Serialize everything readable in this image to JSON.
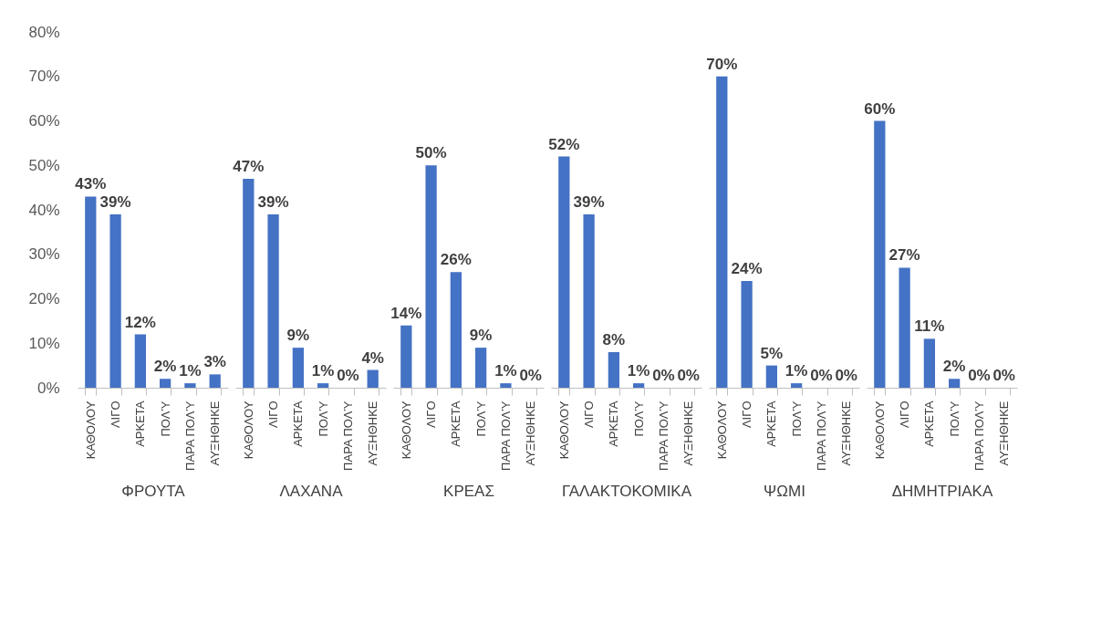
{
  "chart_data": [
    {
      "type": "bar",
      "xlabel": "ΦΡΟΥΤΑ",
      "categories": [
        "ΚΑΘΟΛΟΥ",
        "ΛΙΓΟ",
        "ΑΡΚΕΤΑ",
        "ΠΟΛΎ",
        "ΠΑΡΑ ΠΟΛΎ",
        "ΑΥΞΗΘΗΚΕ"
      ],
      "values": [
        43,
        39,
        12,
        2,
        1,
        3
      ],
      "value_labels": [
        "43%",
        "39%",
        "12%",
        "2%",
        "1%",
        "3%"
      ],
      "color": "#4472c4",
      "ylim": [
        0,
        80
      ],
      "yticks": [
        {
          "value": 0,
          "label": "0%"
        },
        {
          "value": 10,
          "label": "10%"
        },
        {
          "value": 20,
          "label": "20%"
        },
        {
          "value": 30,
          "label": "30%"
        },
        {
          "value": 40,
          "label": "40%"
        },
        {
          "value": 50,
          "label": "50%"
        },
        {
          "value": 60,
          "label": "60%"
        },
        {
          "value": 70,
          "label": "70%"
        },
        {
          "value": 80,
          "label": "80%"
        }
      ]
    },
    {
      "type": "bar",
      "xlabel": "ΛΑΧΑΝΑ",
      "categories": [
        "ΚΑΘΟΛΟΥ",
        "ΛΙΓΟ",
        "ΑΡΚΕΤΑ",
        "ΠΟΛΎ",
        "ΠΑΡΑ ΠΟΛΎ",
        "ΑΥΞΗΘΗΚΕ"
      ],
      "values": [
        47,
        39,
        9,
        1,
        0,
        4
      ],
      "value_labels": [
        "47%",
        "39%",
        "9%",
        "1%",
        "0%",
        "4%"
      ],
      "color": "#4472c4",
      "ylim": [
        0,
        80
      ],
      "tick_labels": "x"
    },
    {
      "type": "bar",
      "xlabel": "ΚΡΕΑΣ",
      "categories": [
        "ΚΑΘΟΛΟΥ",
        "ΛΙΓΟ",
        "ΑΡΚΕΤΑ",
        "ΠΟΛΎ",
        "ΠΑΡΑ ΠΟΛΎ",
        "ΑΥΞΗΘΗΚΕ"
      ],
      "values": [
        14,
        50,
        26,
        9,
        1,
        0
      ],
      "value_labels": [
        "14%",
        "50%",
        "26%",
        "9%",
        "1%",
        "0%"
      ],
      "color": "#4472c4",
      "ylim": [
        0,
        80
      ],
      "tick_labels": "x"
    },
    {
      "type": "bar",
      "xlabel": "ΓΑΛΑΚΤΟΚΟΜΙΚΑ",
      "categories": [
        "ΚΑΘΟΛΟΥ",
        "ΛΙΓΟ",
        "ΑΡΚΕΤΑ",
        "ΠΟΛΎ",
        "ΠΑΡΑ ΠΟΛΎ",
        "ΑΥΞΗΘΗΚΕ"
      ],
      "values": [
        52,
        39,
        8,
        1,
        0,
        0
      ],
      "value_labels": [
        "52%",
        "39%",
        "8%",
        "1%",
        "0%",
        "0%"
      ],
      "color": "#4472c4",
      "ylim": [
        0,
        80
      ],
      "tick_labels": "x"
    },
    {
      "type": "bar",
      "xlabel": "ΨΩΜΙ",
      "categories": [
        "ΚΑΘΟΛΟΥ",
        "ΛΙΓΟ",
        "ΑΡΚΕΤΑ",
        "ΠΟΛΎ",
        "ΠΑΡΑ ΠΟΛΎ",
        "ΑΥΞΗΘΗΚΕ"
      ],
      "values": [
        70,
        24,
        5,
        1,
        0,
        0
      ],
      "value_labels": [
        "70%",
        "24%",
        "5%",
        "1%",
        "0%",
        "0%"
      ],
      "color": "#4472c4",
      "ylim": [
        0,
        80
      ],
      "tick_labels": "x"
    },
    {
      "type": "bar",
      "xlabel": "ΔΗΜΗΤΡΙΑΚΑ",
      "categories": [
        "ΚΑΘΟΛΟΥ",
        "ΛΙΓΟ",
        "ΑΡΚΕΤΑ",
        "ΠΟΛΎ",
        "ΠΑΡΑ ΠΟΛΎ",
        "ΑΥΞΗΘΗΚΕ"
      ],
      "values": [
        60,
        27,
        11,
        2,
        0,
        0
      ],
      "value_labels": [
        "60%",
        "27%",
        "11%",
        "2%",
        "0%",
        "0%"
      ],
      "color": "#4472c4",
      "ylim": [
        0,
        80
      ],
      "tick_labels": "x"
    }
  ]
}
